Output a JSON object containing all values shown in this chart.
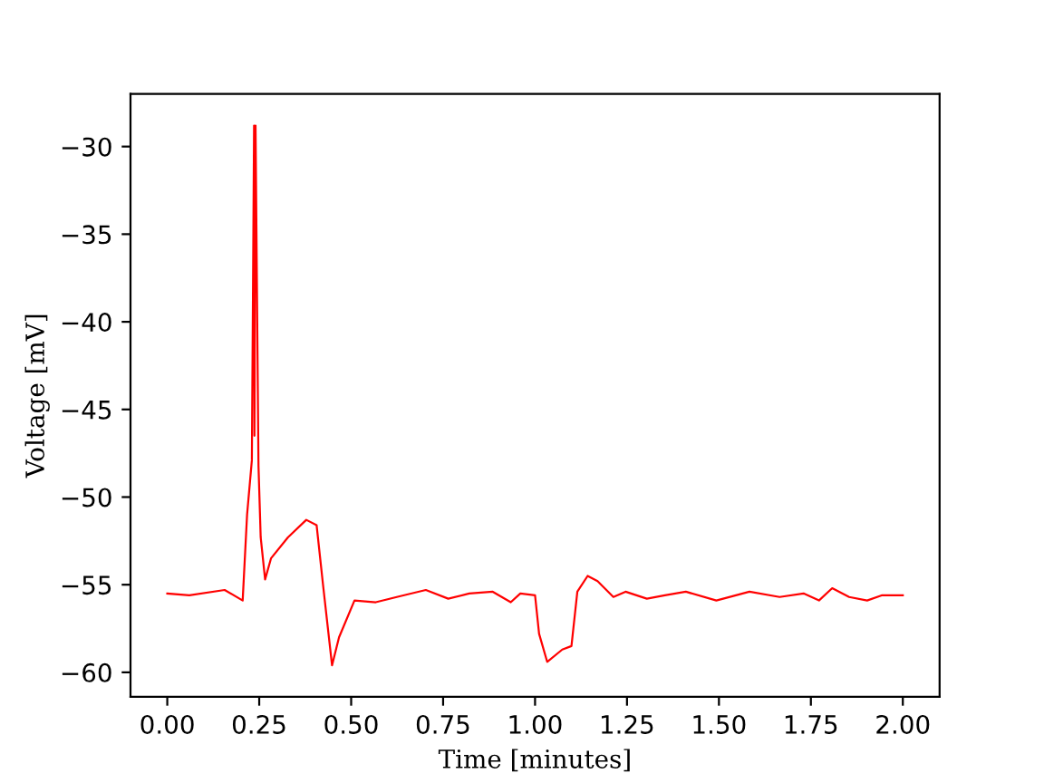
{
  "chart_data": {
    "type": "line",
    "xlabel": "Time [minutes]",
    "ylabel": "Voltage [mV]",
    "xlim": [
      -0.1,
      2.1
    ],
    "xticks": [
      {
        "value": 0,
        "label": "0.00"
      },
      {
        "value": 0.25,
        "label": "0.25"
      },
      {
        "value": 0.5,
        "label": "0.50"
      },
      {
        "value": 0.75,
        "label": "0.75"
      },
      {
        "value": 1,
        "label": "1.00"
      },
      {
        "value": 1.25,
        "label": "1.25"
      },
      {
        "value": 1.5,
        "label": "1.50"
      },
      {
        "value": 1.75,
        "label": "1.75"
      },
      {
        "value": 2,
        "label": "2.00"
      }
    ],
    "ylim": [
      -61.4,
      -27.0
    ],
    "yticks": [
      -60,
      -55,
      -50,
      -45,
      -40,
      -35,
      -30
    ],
    "grid": false,
    "marker": "none",
    "line_style": "solid",
    "series": [
      {
        "color": "#ff0000",
        "x": [
          0,
          0.06,
          0.156,
          0.205,
          0.217,
          0.23,
          0.236,
          0.237,
          0.24,
          0.248,
          0.254,
          0.266,
          0.282,
          0.328,
          0.378,
          0.406,
          0.424,
          0.448,
          0.467,
          0.509,
          0.567,
          0.624,
          0.703,
          0.764,
          0.821,
          0.885,
          0.934,
          0.96,
          1.0,
          1.011,
          1.033,
          1.074,
          1.099,
          1.115,
          1.143,
          1.17,
          1.213,
          1.246,
          1.304,
          1.353,
          1.41,
          1.493,
          1.583,
          1.665,
          1.73,
          1.772,
          1.808,
          1.854,
          1.903,
          1.944,
          2.0
        ],
        "values": [
          -55.5,
          -55.6,
          -55.3,
          -55.9,
          -51.0,
          -47.9,
          -28.8,
          -46.5,
          -28.8,
          -48.2,
          -52.3,
          -54.7,
          -53.5,
          -52.3,
          -51.3,
          -51.6,
          -55.1,
          -59.6,
          -58.0,
          -55.9,
          -56.0,
          -55.7,
          -55.3,
          -55.8,
          -55.5,
          -55.4,
          -56.0,
          -55.5,
          -55.6,
          -57.8,
          -59.4,
          -58.7,
          -58.5,
          -55.4,
          -54.5,
          -54.8,
          -55.7,
          -55.4,
          -55.8,
          -55.6,
          -55.4,
          -55.9,
          -55.4,
          -55.7,
          -55.5,
          -55.9,
          -55.2,
          -55.7,
          -55.9,
          -55.6,
          -55.6
        ]
      }
    ]
  }
}
